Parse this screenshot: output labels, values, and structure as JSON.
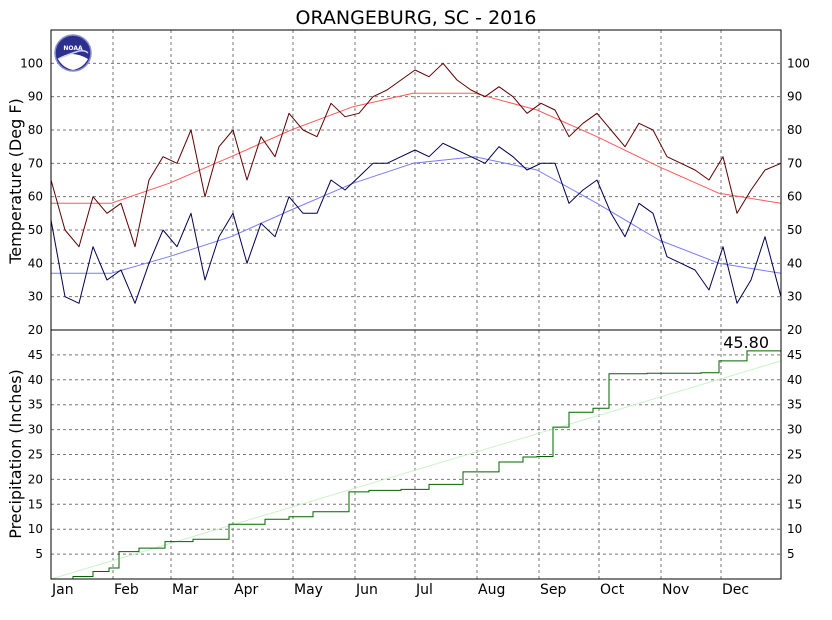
{
  "chart_data": [
    {
      "type": "line",
      "title": "ORANGEBURG, SC - 2016",
      "ylabel": "Temperature (Deg F)",
      "xlabel": "",
      "ylim": [
        20,
        110
      ],
      "yticks": [
        20,
        30,
        40,
        50,
        60,
        70,
        80,
        90,
        100
      ],
      "months": [
        "Jan",
        "Feb",
        "Mar",
        "Apr",
        "May",
        "Jun",
        "Jul",
        "Aug",
        "Sep",
        "Oct",
        "Nov",
        "Dec"
      ],
      "month_start_day": [
        1,
        32,
        61,
        92,
        122,
        153,
        183,
        214,
        245,
        275,
        306,
        336
      ],
      "days_in_year": 366,
      "grid": true,
      "logo": "noaa-logo",
      "series_colors": {
        "daily_high": "#5c0000",
        "daily_low": "#00004d",
        "normal_high": "#ff5a5a",
        "normal_low": "#7a7aff"
      },
      "series": [
        {
          "name": "daily_high",
          "color": "#5c0000",
          "x": [
            1,
            8,
            15,
            22,
            29,
            36,
            43,
            50,
            57,
            64,
            71,
            78,
            85,
            92,
            99,
            106,
            113,
            120,
            127,
            134,
            141,
            148,
            155,
            162,
            169,
            176,
            183,
            190,
            197,
            204,
            211,
            218,
            225,
            232,
            239,
            246,
            253,
            260,
            267,
            274,
            281,
            288,
            295,
            302,
            309,
            316,
            323,
            330,
            337,
            344,
            351,
            358,
            366
          ],
          "values": [
            65,
            50,
            45,
            60,
            55,
            58,
            45,
            65,
            72,
            70,
            80,
            60,
            75,
            80,
            65,
            78,
            72,
            85,
            80,
            78,
            88,
            84,
            85,
            90,
            92,
            95,
            98,
            96,
            100,
            95,
            92,
            90,
            93,
            90,
            85,
            88,
            86,
            78,
            82,
            85,
            80,
            75,
            82,
            80,
            72,
            70,
            68,
            65,
            72,
            55,
            62,
            68,
            70
          ]
        },
        {
          "name": "daily_low",
          "color": "#00004d",
          "x": [
            1,
            8,
            15,
            22,
            29,
            36,
            43,
            50,
            57,
            64,
            71,
            78,
            85,
            92,
            99,
            106,
            113,
            120,
            127,
            134,
            141,
            148,
            155,
            162,
            169,
            176,
            183,
            190,
            197,
            204,
            211,
            218,
            225,
            232,
            239,
            246,
            253,
            260,
            267,
            274,
            281,
            288,
            295,
            302,
            309,
            316,
            323,
            330,
            337,
            344,
            351,
            358,
            366
          ],
          "values": [
            53,
            30,
            28,
            45,
            35,
            38,
            28,
            40,
            50,
            45,
            55,
            35,
            48,
            55,
            40,
            52,
            48,
            60,
            55,
            55,
            65,
            62,
            66,
            70,
            70,
            72,
            74,
            72,
            76,
            74,
            72,
            70,
            75,
            72,
            68,
            70,
            70,
            58,
            62,
            65,
            55,
            48,
            58,
            55,
            42,
            40,
            38,
            32,
            45,
            28,
            35,
            48,
            30
          ]
        },
        {
          "name": "normal_high",
          "color": "#ff5a5a",
          "x": [
            1,
            31,
            60,
            91,
            121,
            152,
            182,
            213,
            244,
            274,
            305,
            335,
            366
          ],
          "values": [
            58,
            58,
            64,
            72,
            80,
            87,
            91,
            91,
            86,
            78,
            69,
            61,
            58
          ]
        },
        {
          "name": "normal_low",
          "color": "#7a7aff",
          "x": [
            1,
            31,
            60,
            91,
            121,
            152,
            182,
            213,
            244,
            274,
            305,
            335,
            366
          ],
          "values": [
            37,
            37,
            42,
            48,
            56,
            64,
            70,
            72,
            68,
            58,
            47,
            40,
            37
          ]
        }
      ]
    },
    {
      "type": "line",
      "title": "",
      "ylabel": "Precipitation (Inches)",
      "xlabel": "",
      "ylim": [
        0,
        50
      ],
      "yticks": [
        5,
        10,
        15,
        20,
        25,
        30,
        35,
        40,
        45
      ],
      "annotation": "45.80",
      "grid": true,
      "series_colors": {
        "observed_cumulative": "#006400",
        "normal_cumulative": "#c8f5c8"
      },
      "series": [
        {
          "name": "observed_cumulative",
          "color": "#006400",
          "x": [
            1,
            12,
            22,
            30,
            35,
            45,
            58,
            72,
            90,
            108,
            120,
            132,
            150,
            160,
            176,
            190,
            207,
            225,
            237,
            244,
            252,
            260,
            272,
            280,
            299,
            315,
            326,
            335,
            349,
            366
          ],
          "values": [
            0,
            0.5,
            1.5,
            2.2,
            5.5,
            6.2,
            7.5,
            8.0,
            11.0,
            12.0,
            12.5,
            13.5,
            17.5,
            17.8,
            18.0,
            19.0,
            21.5,
            23.5,
            24.5,
            24.6,
            30.5,
            33.5,
            34.3,
            41.2,
            41.3,
            41.3,
            41.4,
            43.8,
            45.8,
            45.8
          ]
        },
        {
          "name": "normal_cumulative",
          "color": "#c8f5c8",
          "x": [
            1,
            366
          ],
          "values": [
            0,
            43.8
          ]
        }
      ]
    }
  ]
}
